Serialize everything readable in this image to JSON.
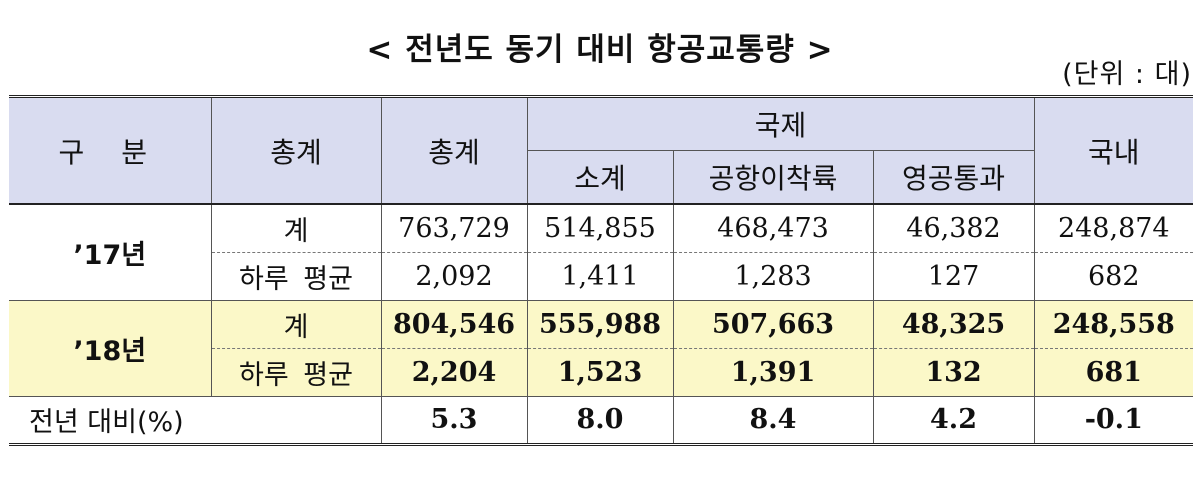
{
  "title": "< 전년도 동기 대비 항공교통량 >",
  "unit": "(단위 : 대)",
  "header": {
    "category": "구 분",
    "total_left": "총계",
    "total": "총계",
    "international": "국제",
    "subtotal": "소계",
    "airport_arrival_departure": "공항이착륙",
    "overflight": "영공통과",
    "domestic": "국내"
  },
  "rows": {
    "y17": {
      "label": "’17년",
      "sum_label": "계",
      "avg_label": "하루 평균",
      "sum": [
        "763,729",
        "514,855",
        "468,473",
        "46,382",
        "248,874"
      ],
      "avg": [
        "2,092",
        "1,411",
        "1,283",
        "127",
        "682"
      ]
    },
    "y18": {
      "label": "’18년",
      "sum_label": "계",
      "avg_label": "하루 평균",
      "sum": [
        "804,546",
        "555,988",
        "507,663",
        "48,325",
        "248,558"
      ],
      "avg": [
        "2,204",
        "1,523",
        "1,391",
        "132",
        "681"
      ]
    },
    "compare": {
      "label": "전년 대비(%)",
      "values": [
        "5.3",
        "8.0",
        "8.4",
        "4.2",
        "-0.1"
      ]
    }
  }
}
